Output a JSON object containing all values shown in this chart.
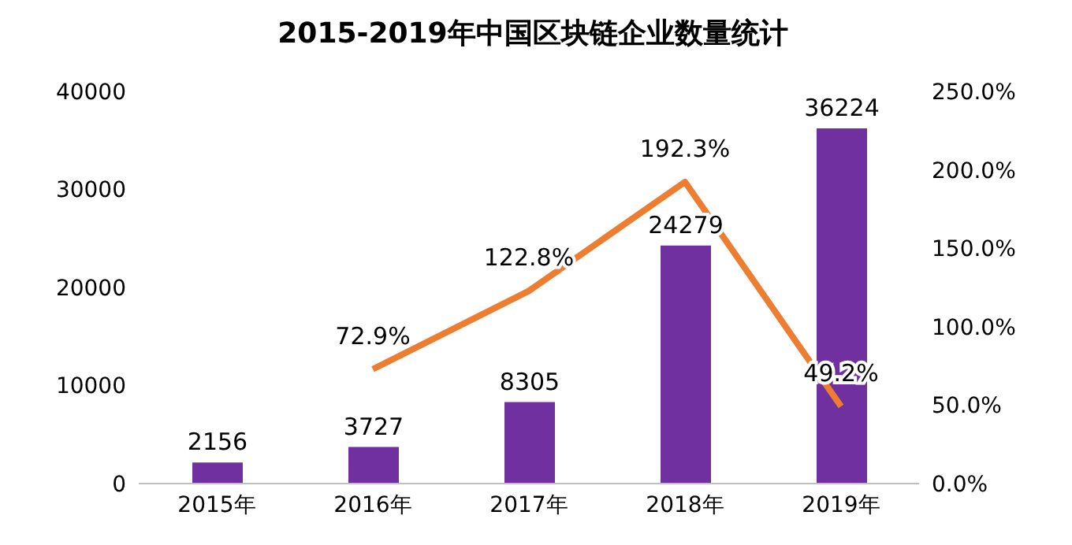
{
  "chart_data": {
    "type": "bar",
    "title": "2015-2019年中国区块链企业数量统计",
    "categories": [
      "2015年",
      "2016年",
      "2017年",
      "2018年",
      "2019年"
    ],
    "series": [
      {
        "color": "#7030a0",
        "values": [
          2156,
          3727,
          8305,
          24279,
          36224
        ],
        "value_labels": [
          "2156",
          "3727",
          "8305",
          "24279",
          "36224"
        ]
      },
      {
        "type": "line",
        "axis": "y2",
        "color": "#ed7d31",
        "values": [
          null,
          72.9,
          122.8,
          192.3,
          49.2
        ],
        "value_labels": [
          null,
          "72.9%",
          "122.8%",
          "192.3%",
          "49.2%"
        ]
      }
    ],
    "ylim": [
      0,
      40000
    ],
    "yticks": [
      0,
      10000,
      20000,
      30000,
      40000
    ],
    "y2lim": [
      0,
      250
    ],
    "y2ticks": [
      {
        "value": 0,
        "label": "0.0%"
      },
      {
        "value": 50,
        "label": "50.0%"
      },
      {
        "value": 100,
        "label": "100.0%"
      },
      {
        "value": 150,
        "label": "150.0%"
      },
      {
        "value": 200,
        "label": "200.0%"
      },
      {
        "value": 250,
        "label": "250.0%"
      }
    ],
    "grid": false,
    "legend": false,
    "marker": "none",
    "line_style": "solid"
  }
}
